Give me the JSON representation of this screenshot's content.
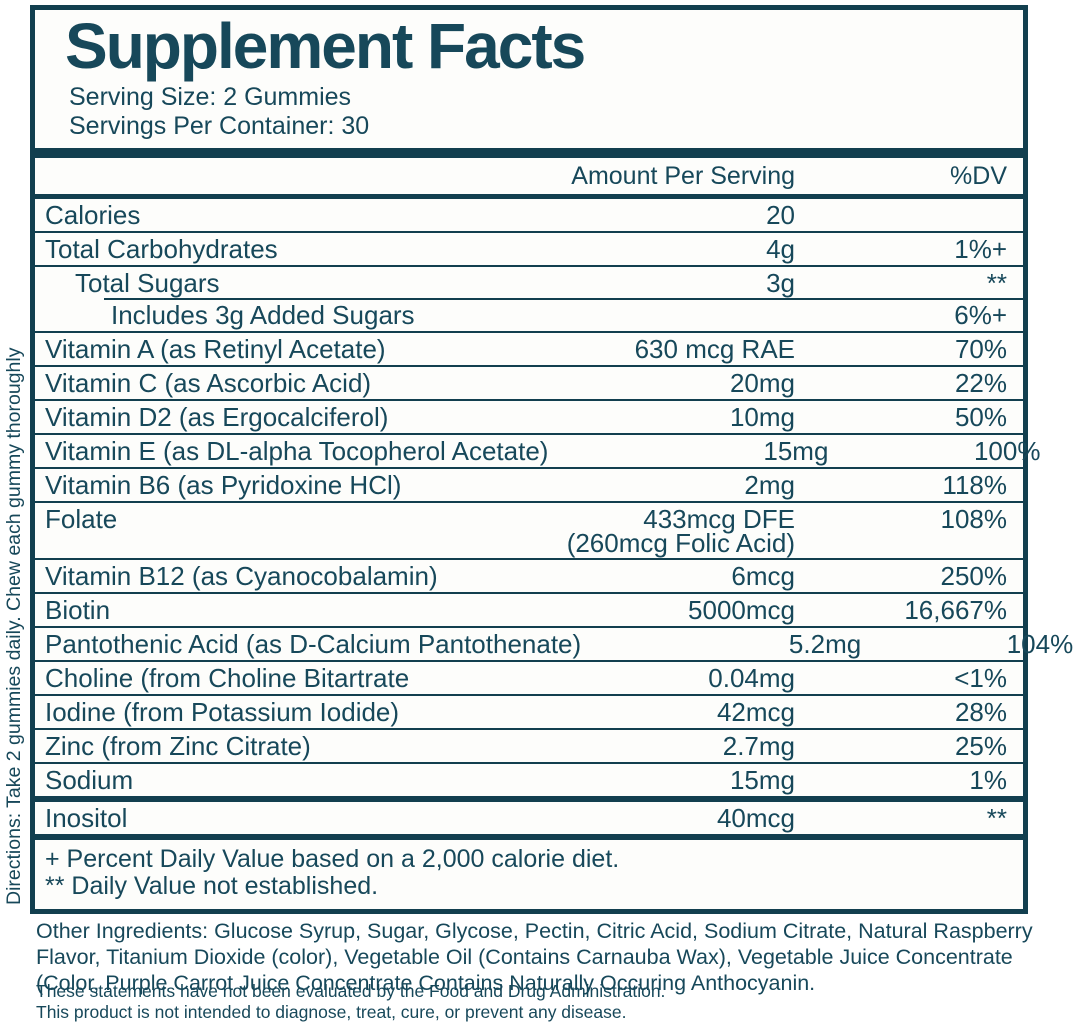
{
  "label": {
    "title": "Supplement Facts",
    "serving_size": "Serving Size: 2 Gummies",
    "servings_per_container": "Servings Per Container: 30",
    "header": {
      "amount": "Amount Per Serving",
      "dv": "%DV"
    },
    "rows": [
      {
        "name": "Calories",
        "amount": "20",
        "dv": ""
      },
      {
        "name": "Total Carbohydrates",
        "amount": "4g",
        "dv": "1%+"
      },
      {
        "name": "Total Sugars",
        "amount": "3g",
        "dv": "**",
        "indent": 1
      },
      {
        "name": "Includes 3g Added Sugars",
        "amount": "",
        "dv": "6%+",
        "indent": 2,
        "partial_rule": true
      },
      {
        "name": "Vitamin A (as Retinyl Acetate)",
        "amount": "630 mcg RAE",
        "dv": "70%"
      },
      {
        "name": "Vitamin C (as Ascorbic Acid)",
        "amount": "20mg",
        "dv": "22%"
      },
      {
        "name": "Vitamin D2 (as Ergocalciferol)",
        "amount": "10mg",
        "dv": "50%"
      },
      {
        "name": "Vitamin E (as DL-alpha Tocopherol Acetate)",
        "amount": "15mg",
        "dv": "100%"
      },
      {
        "name": "Vitamin B6 (as Pyridoxine HCl)",
        "amount": "2mg",
        "dv": "118%"
      },
      {
        "name": "Folate",
        "amount": "433mcg DFE",
        "amount2": "(260mcg Folic Acid)",
        "dv": "108%"
      },
      {
        "name": "Vitamin B12 (as Cyanocobalamin)",
        "amount": "6mcg",
        "dv": "250%"
      },
      {
        "name": "Biotin",
        "amount": "5000mcg",
        "dv": "16,667%"
      },
      {
        "name": "Pantothenic Acid (as D-Calcium Pantothenate)",
        "amount": "5.2mg",
        "dv": "104%"
      },
      {
        "name": "Choline (from Choline Bitartrate",
        "amount": "0.04mg",
        "dv": "<1%"
      },
      {
        "name": "Iodine (from Potassium Iodide)",
        "amount": "42mcg",
        "dv": "28%"
      },
      {
        "name": "Zinc (from Zinc Citrate)",
        "amount": "2.7mg",
        "dv": "25%"
      },
      {
        "name": "Sodium",
        "amount": "15mg",
        "dv": "1%"
      }
    ],
    "extra_rows": [
      {
        "name": "Inositol",
        "amount": "40mcg",
        "dv": "**"
      }
    ],
    "footnotes": [
      "+ Percent Daily Value based on a 2,000 calorie diet.",
      "** Daily Value not established."
    ],
    "directions": "Directions: Take 2 gummies daily. Chew each gummy thoroughly",
    "other_ingredients": "Other Ingredients: Glucose Syrup, Sugar, Glycose, Pectin, Citric Acid, Sodium Citrate, Natural Raspberry Flavor, Titanium Dioxide (color), Vegetable Oil (Contains Carnauba Wax), Vegetable Juice Concentrate (Color, Purple Carrot Juice Concentrate Contains Naturally Occuring Anthocyanin.",
    "disclaimers": [
      "These statements have not been evaluated by the Food and Drug Administration.",
      "This product is not intended to diagnose, treat, cure, or prevent any disease."
    ],
    "colors": {
      "ink": "#17485a",
      "rule": "#123f4f",
      "background": "#fdfdfb"
    }
  }
}
